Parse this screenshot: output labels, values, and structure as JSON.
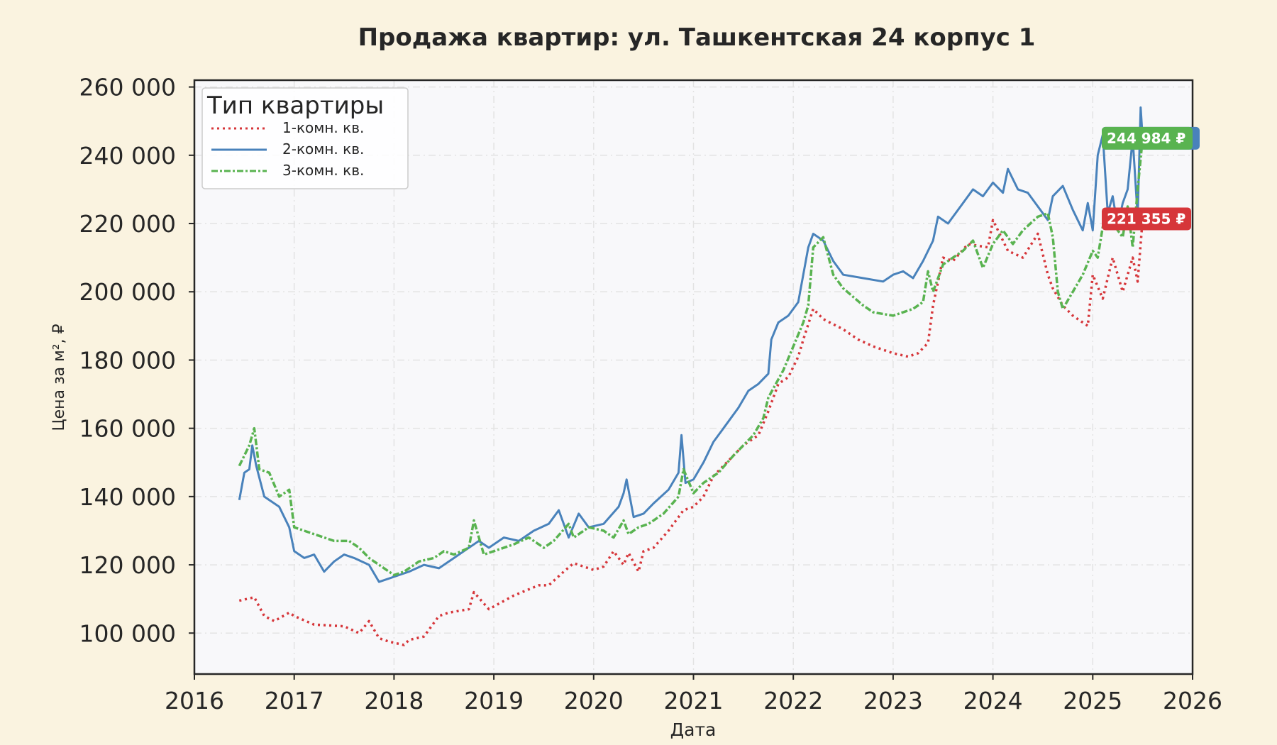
{
  "chart_data": {
    "type": "line",
    "title": "Продажа квартир: ул. Ташкентская 24 корпус 1",
    "xlabel": "Дата",
    "ylabel": "Цена за м², ₽",
    "xlim": [
      2016.0,
      2026.0
    ],
    "ylim": [
      88000,
      262000
    ],
    "x_ticks": [
      2016,
      2017,
      2018,
      2019,
      2020,
      2021,
      2022,
      2023,
      2024,
      2025,
      2026
    ],
    "x_tick_labels": [
      "2016",
      "2017",
      "2018",
      "2019",
      "2020",
      "2021",
      "2022",
      "2023",
      "2024",
      "2025",
      "2026"
    ],
    "y_ticks": [
      100000,
      120000,
      140000,
      160000,
      180000,
      200000,
      220000,
      240000,
      260000
    ],
    "y_tick_labels": [
      "100 000",
      "120 000",
      "140 000",
      "160 000",
      "180 000",
      "200 000",
      "220 000",
      "240 000",
      "260 000"
    ],
    "grid": true,
    "legend": {
      "title": "Тип квартиры",
      "position": "top-left"
    },
    "colors": {
      "background": "#faf3e0",
      "plot_bg": "#f8f8fa",
      "grid": "#e3e3e3",
      "axis": "#262626"
    },
    "series": [
      {
        "name": "1-комн. кв.",
        "color": "#d6363a",
        "style": "dotted",
        "x": [
          2016.45,
          2016.6,
          2016.7,
          2016.8,
          2016.95,
          2017.0,
          2017.2,
          2017.5,
          2017.65,
          2017.75,
          2017.85,
          2017.95,
          2018.1,
          2018.15,
          2018.3,
          2018.45,
          2018.55,
          2018.75,
          2018.8,
          2018.95,
          2019.2,
          2019.45,
          2019.55,
          2019.7,
          2019.8,
          2020.0,
          2020.1,
          2020.2,
          2020.3,
          2020.35,
          2020.45,
          2020.5,
          2020.6,
          2020.75,
          2020.9,
          2021.0,
          2021.1,
          2021.2,
          2021.3,
          2021.5,
          2021.65,
          2021.75,
          2021.85,
          2021.95,
          2022.05,
          2022.1,
          2022.2,
          2022.3,
          2022.5,
          2022.65,
          2022.8,
          2023.0,
          2023.15,
          2023.25,
          2023.35,
          2023.4,
          2023.5,
          2023.6,
          2023.75,
          2023.95,
          2024.0,
          2024.15,
          2024.3,
          2024.45,
          2024.55,
          2024.6,
          2024.7,
          2024.8,
          2024.95,
          2025.0,
          2025.1,
          2025.2,
          2025.3,
          2025.4,
          2025.45,
          2025.5
        ],
        "values": [
          109500,
          110500,
          105000,
          103500,
          106000,
          105000,
          102500,
          102000,
          100000,
          103500,
          98500,
          97500,
          96500,
          98000,
          99000,
          105000,
          106000,
          107000,
          112000,
          107000,
          111000,
          114000,
          114000,
          118000,
          120500,
          118500,
          119500,
          124000,
          120000,
          123500,
          118000,
          124000,
          125000,
          130000,
          136000,
          137000,
          140000,
          146000,
          149000,
          155000,
          158000,
          165000,
          173000,
          175000,
          181000,
          186000,
          195000,
          192000,
          189000,
          186000,
          184000,
          182000,
          181000,
          182000,
          185000,
          196000,
          210000,
          209000,
          214000,
          213000,
          221000,
          212000,
          210000,
          217000,
          205000,
          201000,
          196000,
          193000,
          190000,
          205000,
          198000,
          210000,
          200000,
          210000,
          203000,
          221355
        ]
      },
      {
        "name": "2-комн. кв.",
        "color": "#4982bb",
        "style": "solid",
        "x": [
          2016.45,
          2016.5,
          2016.55,
          2016.58,
          2016.62,
          2016.7,
          2016.85,
          2016.95,
          2017.0,
          2017.1,
          2017.2,
          2017.3,
          2017.4,
          2017.5,
          2017.6,
          2017.75,
          2017.85,
          2017.95,
          2018.05,
          2018.15,
          2018.3,
          2018.45,
          2018.55,
          2018.7,
          2018.85,
          2018.95,
          2019.1,
          2019.25,
          2019.4,
          2019.55,
          2019.65,
          2019.75,
          2019.85,
          2019.95,
          2020.1,
          2020.25,
          2020.3,
          2020.33,
          2020.4,
          2020.5,
          2020.6,
          2020.75,
          2020.85,
          2020.88,
          2020.92,
          2021.0,
          2021.1,
          2021.2,
          2021.3,
          2021.45,
          2021.55,
          2021.65,
          2021.75,
          2021.78,
          2021.85,
          2021.95,
          2022.05,
          2022.15,
          2022.2,
          2022.3,
          2022.4,
          2022.5,
          2022.7,
          2022.9,
          2023.0,
          2023.1,
          2023.2,
          2023.3,
          2023.4,
          2023.45,
          2023.55,
          2023.7,
          2023.8,
          2023.9,
          2024.0,
          2024.1,
          2024.15,
          2024.25,
          2024.35,
          2024.45,
          2024.55,
          2024.6,
          2024.7,
          2024.8,
          2024.9,
          2024.95,
          2025.0,
          2025.05,
          2025.1,
          2025.15,
          2025.2,
          2025.25,
          2025.3,
          2025.35,
          2025.4,
          2025.45,
          2025.48,
          2025.5
        ],
        "values": [
          139000,
          147000,
          148000,
          155000,
          149000,
          140000,
          137000,
          131000,
          124000,
          122000,
          123000,
          118000,
          121000,
          123000,
          122000,
          120000,
          115000,
          116000,
          117000,
          118000,
          120000,
          119000,
          121000,
          124000,
          127000,
          125000,
          128000,
          127000,
          130000,
          132000,
          136000,
          128000,
          135000,
          131000,
          132000,
          137000,
          141000,
          145000,
          134000,
          135000,
          138000,
          142000,
          147000,
          158000,
          144000,
          145000,
          150000,
          156000,
          160000,
          166000,
          171000,
          173000,
          176000,
          186000,
          191000,
          193000,
          197000,
          213000,
          217000,
          215000,
          209000,
          205000,
          204000,
          203000,
          205000,
          206000,
          204000,
          209000,
          215000,
          222000,
          220000,
          226000,
          230000,
          228000,
          232000,
          229000,
          236000,
          230000,
          229000,
          225000,
          221000,
          228000,
          231000,
          224000,
          218000,
          226000,
          218000,
          240000,
          246000,
          223000,
          228000,
          219000,
          226000,
          230000,
          245000,
          222000,
          254000,
          244984
        ]
      },
      {
        "name": "3-комн. кв.",
        "color": "#59b350",
        "style": "dashdot",
        "x": [
          2016.45,
          2016.55,
          2016.6,
          2016.65,
          2016.75,
          2016.85,
          2016.95,
          2017.0,
          2017.2,
          2017.4,
          2017.55,
          2017.65,
          2017.75,
          2017.85,
          2018.0,
          2018.1,
          2018.25,
          2018.4,
          2018.5,
          2018.6,
          2018.75,
          2018.8,
          2018.9,
          2019.0,
          2019.2,
          2019.35,
          2019.5,
          2019.6,
          2019.75,
          2019.8,
          2019.95,
          2020.1,
          2020.2,
          2020.3,
          2020.35,
          2020.45,
          2020.55,
          2020.7,
          2020.85,
          2020.9,
          2021.0,
          2021.1,
          2021.25,
          2021.4,
          2021.5,
          2021.6,
          2021.7,
          2021.75,
          2021.9,
          2022.0,
          2022.1,
          2022.15,
          2022.2,
          2022.3,
          2022.4,
          2022.5,
          2022.7,
          2022.8,
          2023.0,
          2023.2,
          2023.3,
          2023.35,
          2023.4,
          2023.5,
          2023.6,
          2023.7,
          2023.8,
          2023.9,
          2024.0,
          2024.1,
          2024.2,
          2024.3,
          2024.45,
          2024.55,
          2024.6,
          2024.65,
          2024.7,
          2024.8,
          2024.9,
          2025.0,
          2025.05,
          2025.1,
          2025.2,
          2025.3,
          2025.35,
          2025.4,
          2025.45,
          2025.5
        ],
        "values": [
          149000,
          155000,
          160000,
          148000,
          147000,
          140000,
          142000,
          131000,
          129000,
          127000,
          127000,
          125000,
          122000,
          120000,
          117000,
          118000,
          121000,
          122000,
          124000,
          123000,
          125000,
          133000,
          123000,
          124000,
          126000,
          128000,
          125000,
          127000,
          132000,
          128000,
          131000,
          130000,
          128000,
          133000,
          129000,
          131000,
          132000,
          135000,
          140000,
          148000,
          141000,
          144000,
          147000,
          152000,
          155000,
          158000,
          163000,
          169000,
          177000,
          184000,
          191000,
          196000,
          213000,
          216000,
          205000,
          201000,
          196000,
          194000,
          193000,
          195000,
          197000,
          206000,
          200000,
          208000,
          210000,
          212000,
          215000,
          207000,
          214000,
          218000,
          214000,
          218000,
          222000,
          223000,
          216000,
          200000,
          195000,
          200000,
          205000,
          212000,
          210000,
          219000,
          220000,
          216000,
          225000,
          213000,
          230000,
          244984
        ]
      }
    ],
    "last_value_labels": [
      {
        "series": "2-комн. кв.",
        "text": "244 984 ₽",
        "value": 244984,
        "color": "#4982bb"
      },
      {
        "series": "3-комн. кв.",
        "text": "244 984 ₽",
        "value": 244984,
        "color": "#59b350"
      },
      {
        "series": "1-комн. кв.",
        "text": "221 355 ₽",
        "value": 221355,
        "color": "#d6363a"
      }
    ]
  }
}
